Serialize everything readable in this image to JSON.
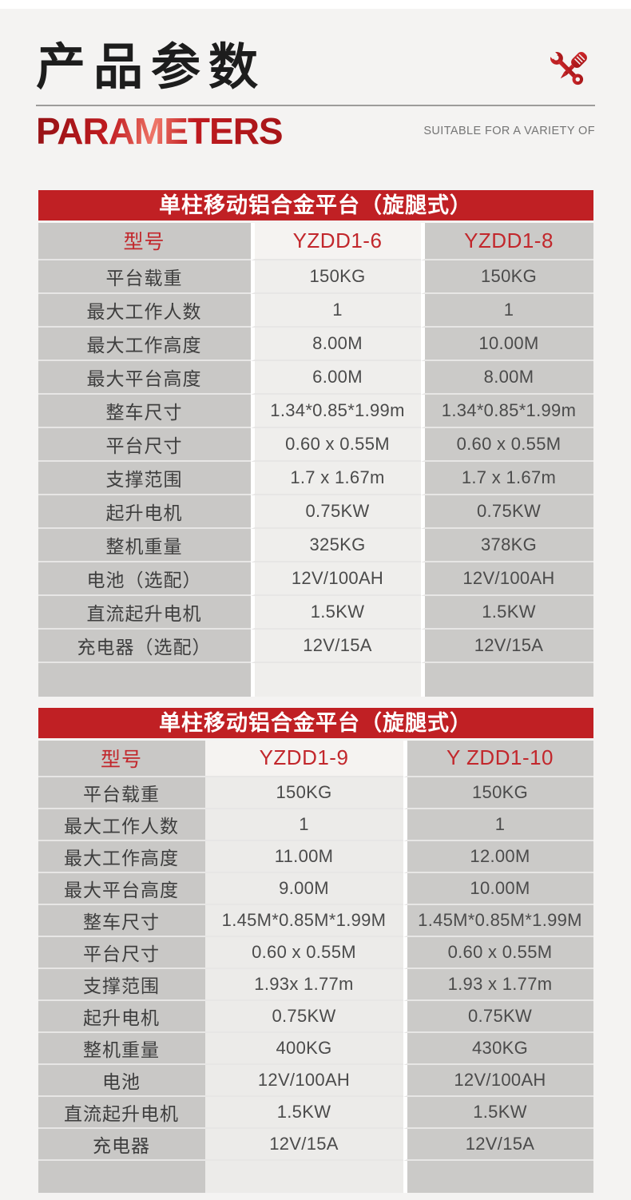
{
  "page": {
    "accent_red": "#c02024",
    "background": "#f4f3f2",
    "column_gray": "#c9c8c6",
    "column_light": "#efeeec"
  },
  "header": {
    "title_cn": "产品参数",
    "title_en": "PARAMETERS",
    "tagline": "SUITABLE FOR A VARIETY OF",
    "icon": "wrench-screwdriver-icon"
  },
  "tables": [
    {
      "title": "单柱移动铝合金平台（旋腿式）",
      "model_label": "型号",
      "models": [
        "YZDD1-6",
        "YZDD1-8"
      ],
      "rows": [
        {
          "label": "平台载重",
          "values": [
            "150KG",
            "150KG"
          ]
        },
        {
          "label": "最大工作人数",
          "values": [
            "1",
            "1"
          ]
        },
        {
          "label": "最大工作高度",
          "values": [
            "8.00M",
            "10.00M"
          ]
        },
        {
          "label": "最大平台高度",
          "values": [
            "6.00M",
            "8.00M"
          ]
        },
        {
          "label": "整车尺寸",
          "values": [
            "1.34*0.85*1.99m",
            "1.34*0.85*1.99m"
          ]
        },
        {
          "label": "平台尺寸",
          "values": [
            "0.60 x 0.55M",
            "0.60 x 0.55M"
          ]
        },
        {
          "label": "支撑范围",
          "values": [
            "1.7 x 1.67m",
            "1.7 x 1.67m"
          ]
        },
        {
          "label": "起升电机",
          "values": [
            "0.75KW",
            "0.75KW"
          ]
        },
        {
          "label": "整机重量",
          "values": [
            "325KG",
            "378KG"
          ]
        },
        {
          "label": "电池（选配）",
          "values": [
            "12V/100AH",
            "12V/100AH"
          ]
        },
        {
          "label": "直流起升电机",
          "values": [
            "1.5KW",
            "1.5KW"
          ]
        },
        {
          "label": "充电器（选配）",
          "values": [
            "12V/15A",
            "12V/15A"
          ]
        }
      ]
    },
    {
      "title": "单柱移动铝合金平台（旋腿式）",
      "model_label": "型号",
      "models": [
        "YZDD1-9",
        "Y ZDD1-10"
      ],
      "rows": [
        {
          "label": "平台载重",
          "values": [
            "150KG",
            "150KG"
          ]
        },
        {
          "label": "最大工作人数",
          "values": [
            "1",
            "1"
          ]
        },
        {
          "label": "最大工作高度",
          "values": [
            "11.00M",
            "12.00M"
          ]
        },
        {
          "label": "最大平台高度",
          "values": [
            "9.00M",
            "10.00M"
          ]
        },
        {
          "label": "整车尺寸",
          "values": [
            "1.45M*0.85M*1.99M",
            "1.45M*0.85M*1.99M"
          ]
        },
        {
          "label": "平台尺寸",
          "values": [
            "0.60 x 0.55M",
            "0.60 x 0.55M"
          ]
        },
        {
          "label": "支撑范围",
          "values": [
            "1.93x 1.77m",
            "1.93 x 1.77m"
          ]
        },
        {
          "label": "起升电机",
          "values": [
            "0.75KW",
            "0.75KW"
          ]
        },
        {
          "label": "整机重量",
          "values": [
            "400KG",
            "430KG"
          ]
        },
        {
          "label": "电池",
          "values": [
            "12V/100AH",
            "12V/100AH"
          ]
        },
        {
          "label": "直流起升电机",
          "values": [
            "1.5KW",
            "1.5KW"
          ]
        },
        {
          "label": "充电器",
          "values": [
            "12V/15A",
            "12V/15A"
          ]
        }
      ]
    }
  ]
}
